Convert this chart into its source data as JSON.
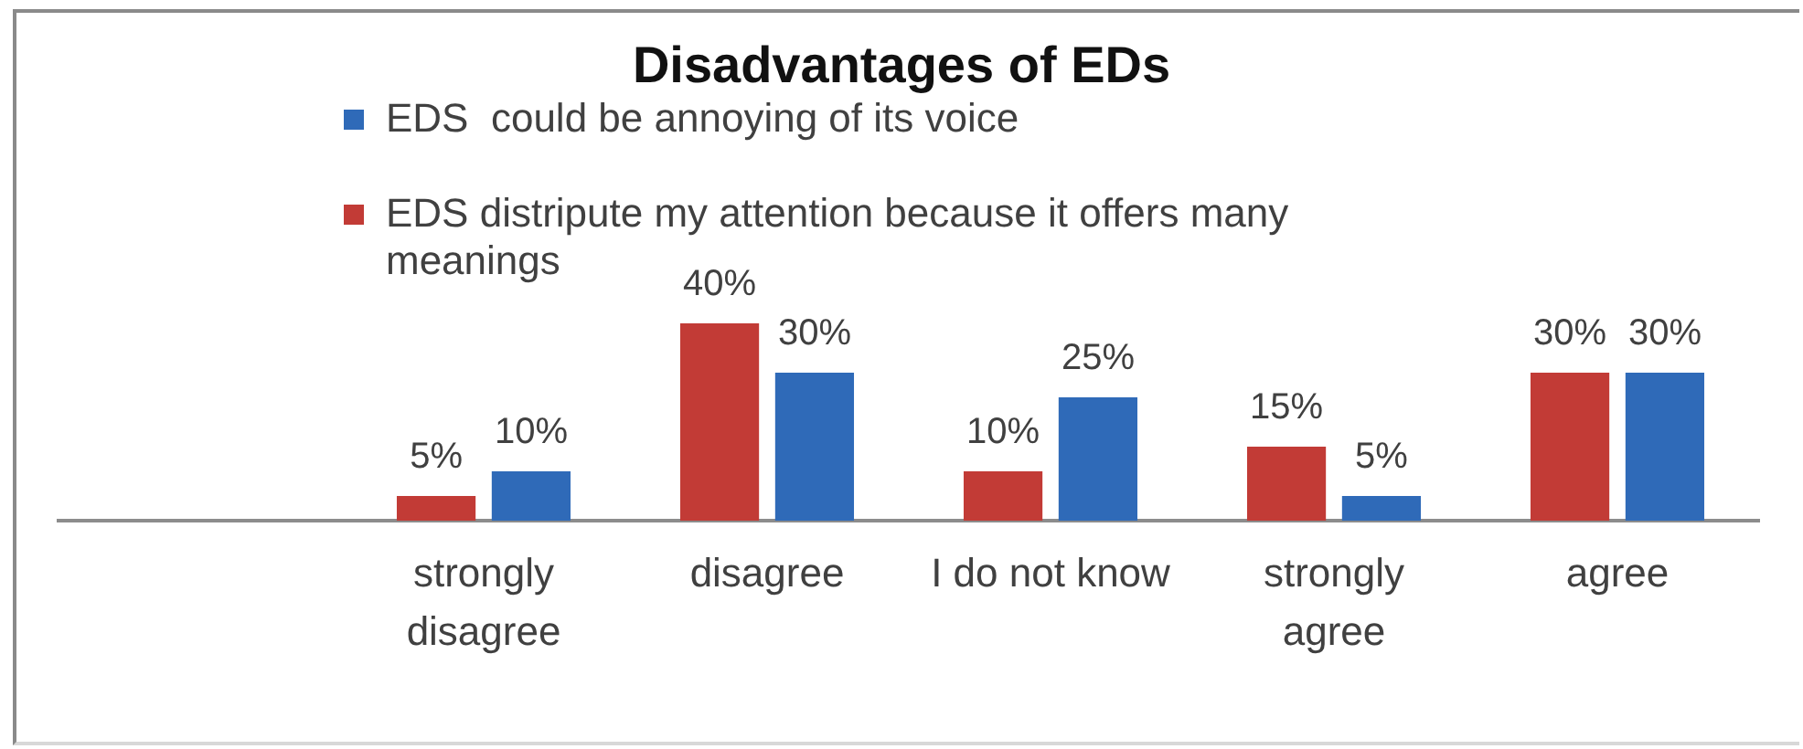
{
  "chart_data": {
    "type": "bar",
    "title": "Disadvantages of EDs",
    "categories": [
      null,
      "strongly disagree",
      "disagree",
      "I do not know",
      "strongly agree",
      "agree"
    ],
    "series": [
      {
        "name": "EDS distripute my attention because it offers many meanings",
        "color": "#c23b36",
        "values": [
          null,
          5,
          40,
          10,
          15,
          30
        ],
        "value_labels": [
          null,
          "5%",
          "40%",
          "10%",
          "15%",
          "30%"
        ]
      },
      {
        "name": "EDS  could be annoying of its voice",
        "color": "#2f6ab8",
        "values": [
          null,
          10,
          30,
          25,
          5,
          30
        ],
        "value_labels": [
          null,
          "10%",
          "30%",
          "25%",
          "5%",
          "30%"
        ]
      }
    ],
    "legend": "top left",
    "grid": false,
    "tick_labels": "x"
  }
}
